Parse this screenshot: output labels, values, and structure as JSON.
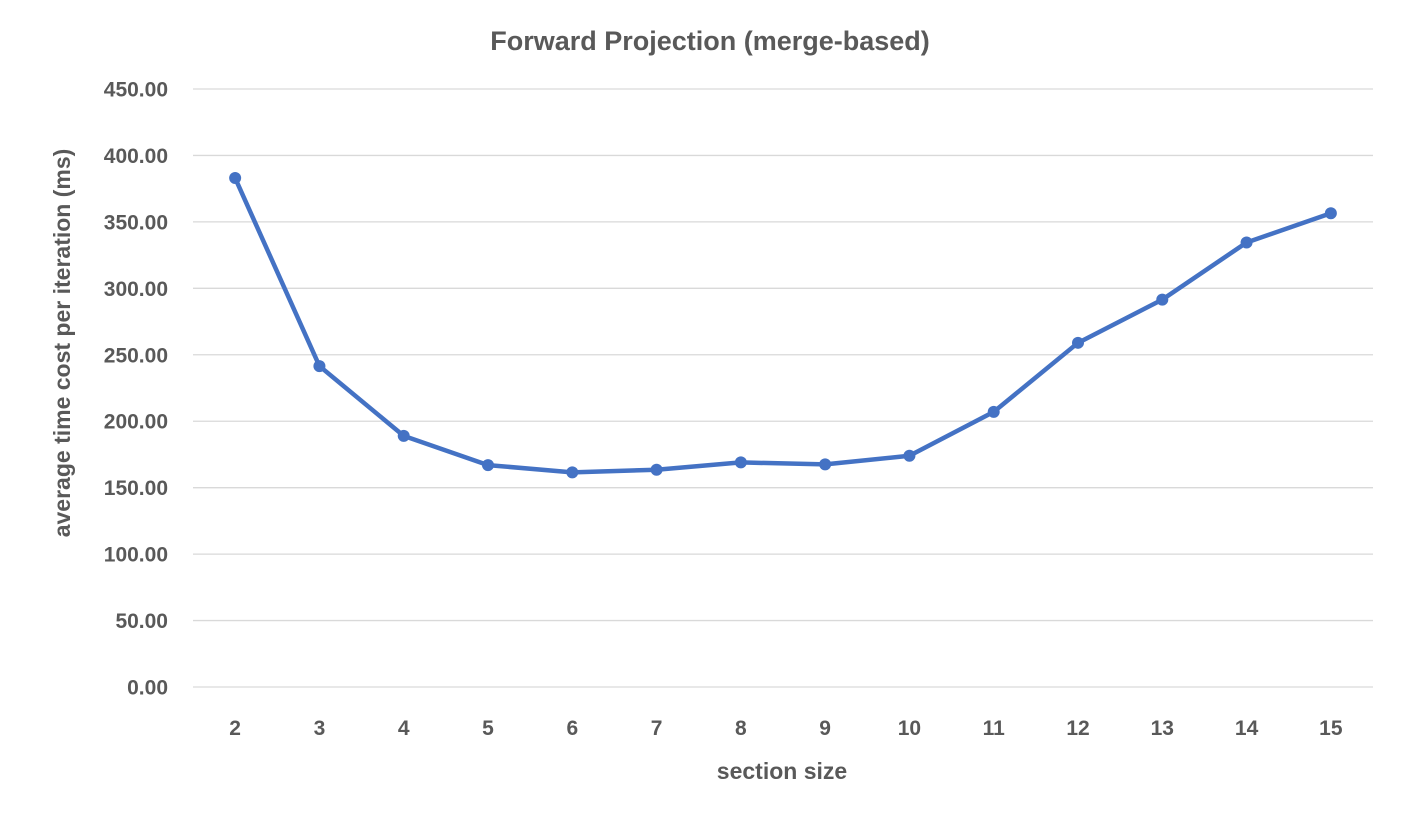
{
  "chart_data": {
    "type": "line",
    "title": "Forward Projection (merge-based)",
    "xlabel": "section size",
    "ylabel": "average time cost per iteration (ms)",
    "categories": [
      "2",
      "3",
      "4",
      "5",
      "6",
      "7",
      "8",
      "9",
      "10",
      "11",
      "12",
      "13",
      "14",
      "15"
    ],
    "series": [
      {
        "values": [
          383.0,
          241.5,
          189.0,
          167.0,
          161.5,
          163.5,
          169.0,
          167.5,
          174.0,
          207.0,
          259.0,
          291.5,
          334.5,
          356.5
        ]
      }
    ],
    "ylim": [
      0,
      450
    ],
    "yticks": [
      "0.00",
      "50.00",
      "100.00",
      "150.00",
      "200.00",
      "250.00",
      "300.00",
      "350.00",
      "400.00",
      "450.00"
    ],
    "grid": true,
    "legend": "none",
    "colors": {
      "series": "#4472c4",
      "gridline": "#d9d9d9",
      "text": "#595959"
    }
  }
}
